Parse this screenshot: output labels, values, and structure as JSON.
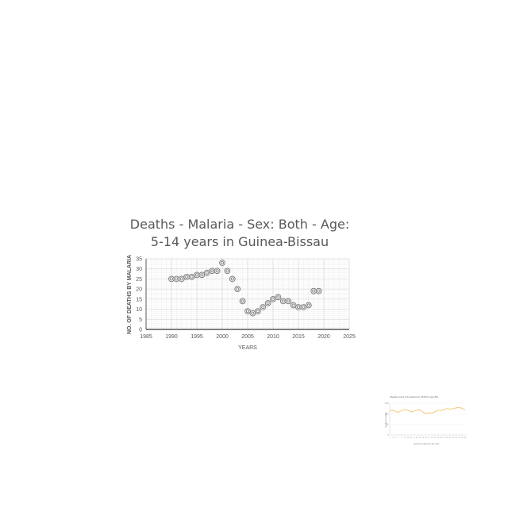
{
  "chart_data": [
    {
      "type": "scatter",
      "title_line1": "Deaths - Malaria - Sex: Both - Age:",
      "title_line2": "5-14 years in Guinea-Bissau",
      "xlabel": "YEARS",
      "ylabel": "NO. OF DEATHS BY MALARIA",
      "xlim": [
        1985,
        2025
      ],
      "ylim": [
        0,
        35
      ],
      "xticks": [
        "1985",
        "1990",
        "1995",
        "2000",
        "2005",
        "2010",
        "2015",
        "2020",
        "2025"
      ],
      "yticks": [
        "0",
        "5",
        "10",
        "15",
        "20",
        "25",
        "30",
        "35"
      ],
      "grid": true,
      "marker": "double-ring",
      "colors": {
        "marker": "#7f7f7f",
        "grid": "#d9d9d9",
        "text": "#595959",
        "axis": "#595959"
      },
      "x": [
        1990,
        1991,
        1992,
        1993,
        1994,
        1995,
        1996,
        1997,
        1998,
        1999,
        2000,
        2001,
        2002,
        2003,
        2004,
        2005,
        2006,
        2007,
        2008,
        2009,
        2010,
        2011,
        2012,
        2013,
        2014,
        2015,
        2016,
        2017,
        2018,
        2019
      ],
      "y": [
        25,
        25,
        25,
        26,
        26,
        27,
        27,
        28,
        29,
        29,
        33,
        29,
        25,
        20,
        14,
        9,
        8,
        9,
        11,
        13,
        15,
        16,
        14,
        14,
        12,
        11,
        11,
        12,
        19,
        19
      ]
    },
    {
      "type": "line",
      "title": "Weekly count of Locations in 2015 for age 85+",
      "xlabel": "Number of Week of the Year",
      "ylabel": "Number of deaths",
      "ylim": [
        0,
        150
      ],
      "yticks": [
        "0",
        "50",
        "100",
        "150"
      ],
      "colors": {
        "line": "#f4c470",
        "text": "#888888",
        "axis": "#bbbbbb"
      },
      "x": [
        1,
        3,
        5,
        7,
        9,
        11,
        13,
        15,
        17,
        19,
        21,
        23,
        25,
        27,
        29,
        31,
        33,
        35,
        37,
        39,
        41,
        43,
        45,
        47,
        49,
        51
      ],
      "y": [
        112,
        118,
        110,
        108,
        115,
        120,
        117,
        109,
        112,
        118,
        119,
        108,
        100,
        105,
        103,
        110,
        117,
        115,
        120,
        125,
        122,
        124,
        128,
        130,
        126,
        118
      ]
    }
  ]
}
